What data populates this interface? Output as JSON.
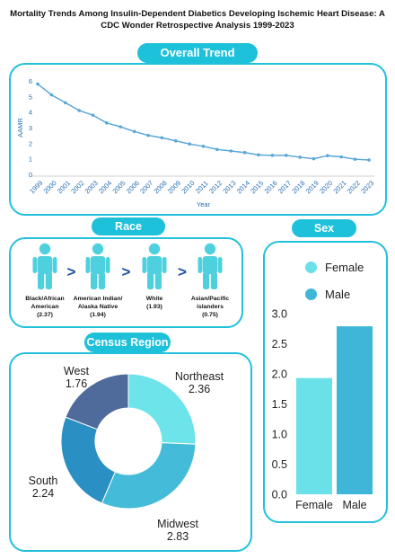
{
  "title_line1": "Mortality Trends Among Insulin-Dependent Diabetics Developing Ischemic Heart Disease: A",
  "title_line2": "CDC Wonder Retrospective Analysis 1999-2023",
  "colors": {
    "accent": "#1ec1da",
    "figure": "#4fd0df",
    "arrow": "#1e4fa1",
    "line": "#5aa7d8",
    "female": "#6ae0e8",
    "male": "#3fb6d8",
    "northeast": "#6ce4ea",
    "midwest": "#44bcd9",
    "south": "#2a8fc2",
    "west": "#4e6b9b"
  },
  "chart_data": [
    {
      "type": "line",
      "title": "Overall Trend",
      "xlabel": "Year",
      "ylabel": "AAMR",
      "ylim": [
        0,
        6
      ],
      "yticks": [
        0,
        1,
        2,
        3,
        4,
        5,
        6
      ],
      "grid": false,
      "x": [
        "1999",
        "2000",
        "2001",
        "2002",
        "2003",
        "2004",
        "2005",
        "2006",
        "2007",
        "2008",
        "2009",
        "2010",
        "2011",
        "2012",
        "2013",
        "2014",
        "2015",
        "2016",
        "2017",
        "2018",
        "2019",
        "2020",
        "2021",
        "2022",
        "2023"
      ],
      "series": [
        {
          "values": [
            5.8,
            5.1,
            4.6,
            4.1,
            3.8,
            3.3,
            3.05,
            2.75,
            2.5,
            2.35,
            2.15,
            1.95,
            1.8,
            1.6,
            1.5,
            1.4,
            1.25,
            1.22,
            1.22,
            1.1,
            1.0,
            1.2,
            1.12,
            0.97,
            0.92
          ]
        }
      ]
    },
    {
      "type": "table",
      "title": "Race",
      "groups": [
        {
          "name_lines": [
            "Black/African",
            "American"
          ],
          "value": "(2.37)"
        },
        {
          "name_lines": [
            "American Indian/",
            "Alaska Native"
          ],
          "value": "(1.94)"
        },
        {
          "name_lines": [
            "White"
          ],
          "value": "(1.93)"
        },
        {
          "name_lines": [
            "Asian/Pacific",
            "islanders"
          ],
          "value": "(0.75)"
        }
      ],
      "separator": ">"
    },
    {
      "type": "bar",
      "title": "Sex",
      "categories": [
        "Female",
        "Male"
      ],
      "values": [
        1.93,
        2.79
      ],
      "ylim": [
        0,
        3
      ],
      "yticks": [
        "0.0",
        "0.5",
        "1.0",
        "1.5",
        "2.0",
        "2.5",
        "3.0"
      ],
      "legend": "top",
      "grid": false
    },
    {
      "type": "pie",
      "title": "Census Region",
      "donut": true,
      "slices": [
        {
          "name": "Northeast",
          "value": 2.36
        },
        {
          "name": "Midwest",
          "value": 2.83
        },
        {
          "name": "South",
          "value": 2.24
        },
        {
          "name": "West",
          "value": 1.76
        }
      ]
    }
  ]
}
